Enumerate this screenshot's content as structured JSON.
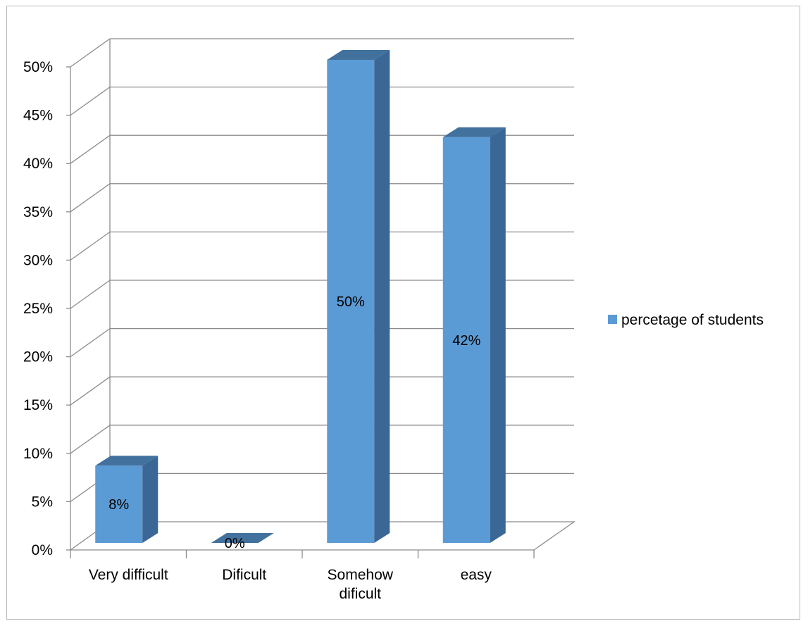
{
  "chart_data": {
    "type": "bar",
    "style": "3d-column",
    "categories": [
      "Very difficult",
      "Dificult",
      "Somehow dificult",
      "easy"
    ],
    "category_label_lines": [
      [
        "Very difficult"
      ],
      [
        "Dificult"
      ],
      [
        "Somehow",
        "dificult"
      ],
      [
        "easy"
      ]
    ],
    "series": [
      {
        "name": "percetage of students",
        "values": [
          8,
          0,
          50,
          42
        ],
        "color": "#5b9bd5"
      }
    ],
    "data_labels": [
      "8%",
      "0%",
      "50%",
      "42%"
    ],
    "ylim": [
      0,
      50
    ],
    "y_ticks": [
      "0%",
      "5%",
      "10%",
      "15%",
      "20%",
      "25%",
      "30%",
      "35%",
      "40%",
      "45%",
      "50%"
    ],
    "grid": true,
    "legend_position": "right"
  }
}
